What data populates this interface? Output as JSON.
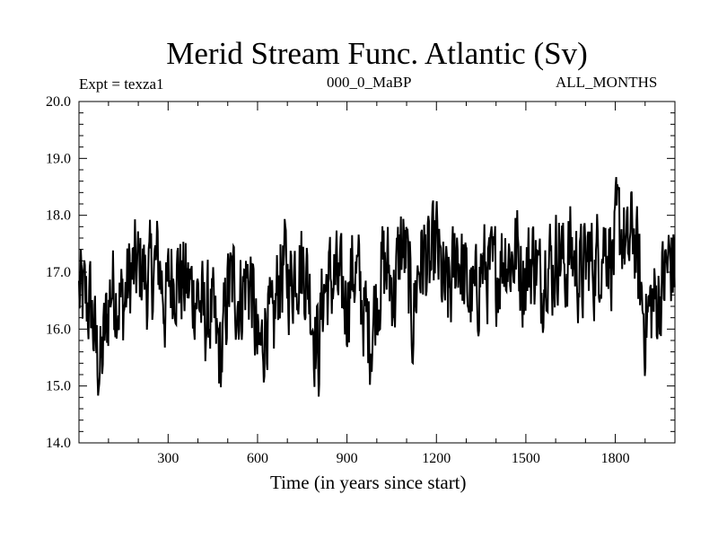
{
  "chart_data": {
    "type": "line",
    "title": "Merid Stream Func. Atlantic (Sv)",
    "left_label": "Expt = texza1",
    "center_label": "000_0_MaBP",
    "right_label": "ALL_MONTHS",
    "xlabel": "Time (in years since start)",
    "ylabel": "",
    "xlim": [
      1,
      2000
    ],
    "ylim": [
      14.0,
      20.0
    ],
    "xticks": [
      300,
      600,
      900,
      1200,
      1500,
      1800
    ],
    "xtick_labels": [
      "300",
      "600",
      "900",
      "1200",
      "1500",
      "1800"
    ],
    "yticks": [
      14.0,
      15.0,
      16.0,
      17.0,
      18.0,
      19.0,
      20.0
    ],
    "ytick_labels": [
      "14.0",
      "15.0",
      "16.0",
      "17.0",
      "18.0",
      "19.0",
      "20.0"
    ],
    "series": [
      {
        "name": "Merid Stream Func. Atlantic",
        "x": [
          1,
          40,
          60,
          75,
          90,
          110,
          130,
          150,
          170,
          190,
          210,
          230,
          250,
          270,
          290,
          310,
          330,
          350,
          375,
          400,
          420,
          445,
          460,
          480,
          500,
          520,
          540,
          560,
          580,
          600,
          615,
          630,
          650,
          670,
          690,
          710,
          730,
          755,
          775,
          790,
          805,
          820,
          840,
          860,
          880,
          900,
          920,
          940,
          960,
          980,
          1000,
          1020,
          1040,
          1060,
          1080,
          1100,
          1120,
          1140,
          1160,
          1180,
          1200,
          1215,
          1230,
          1250,
          1270,
          1290,
          1310,
          1330,
          1350,
          1370,
          1390,
          1410,
          1430,
          1450,
          1470,
          1490,
          1510,
          1530,
          1550,
          1570,
          1590,
          1610,
          1630,
          1650,
          1670,
          1690,
          1710,
          1730,
          1750,
          1770,
          1790,
          1810,
          1825,
          1840,
          1860,
          1880,
          1900,
          1920,
          1940,
          1960,
          1980,
          2000
        ],
        "values": [
          16.6,
          16.4,
          15.6,
          15.3,
          16.0,
          16.8,
          16.6,
          16.4,
          16.9,
          17.0,
          17.1,
          16.8,
          17.0,
          17.2,
          16.4,
          17.0,
          17.0,
          16.8,
          16.7,
          16.6,
          16.2,
          16.3,
          15.8,
          15.5,
          16.7,
          16.8,
          16.5,
          16.9,
          16.8,
          15.5,
          15.7,
          16.3,
          15.8,
          16.9,
          17.1,
          16.8,
          17.2,
          17.1,
          16.7,
          16.0,
          15.6,
          16.7,
          16.8,
          16.9,
          16.6,
          16.5,
          17.1,
          16.8,
          16.2,
          15.9,
          16.6,
          17.1,
          17.0,
          16.6,
          17.5,
          17.2,
          16.1,
          17.1,
          17.3,
          17.0,
          17.5,
          16.9,
          16.6,
          16.7,
          17.5,
          16.9,
          16.6,
          16.5,
          17.1,
          17.0,
          16.9,
          17.1,
          17.4,
          17.2,
          17.4,
          16.9,
          17.1,
          17.3,
          16.7,
          17.4,
          17.0,
          17.5,
          17.0,
          17.4,
          17.1,
          16.9,
          17.3,
          17.1,
          17.4,
          17.6,
          17.2,
          17.8,
          17.7,
          17.2,
          17.8,
          16.9,
          16.1,
          16.4,
          16.5,
          16.8,
          17.2,
          17.1
        ]
      }
    ]
  }
}
